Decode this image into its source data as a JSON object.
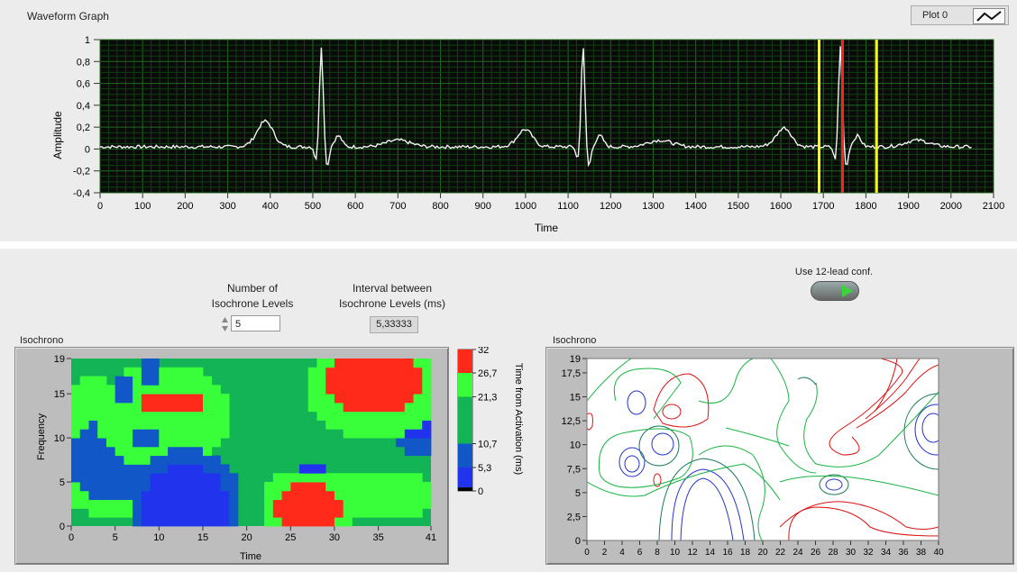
{
  "waveform": {
    "title": "Waveform Graph",
    "plot_legend": "Plot 0",
    "ylabel": "Amplitude",
    "xlabel": "Time",
    "xticks": [
      "0",
      "100",
      "200",
      "300",
      "400",
      "500",
      "600",
      "700",
      "800",
      "900",
      "1000",
      "1100",
      "1200",
      "1300",
      "1400",
      "1500",
      "1600",
      "1700",
      "1800",
      "1900",
      "2000",
      "2100"
    ],
    "yticks": [
      "1",
      "0,8",
      "0,6",
      "0,4",
      "0,2",
      "0",
      "-0,2",
      "-0,4"
    ],
    "cursors": [
      {
        "x": 1690,
        "color": "#ffff00"
      },
      {
        "x": 1745,
        "color": "#ff2020"
      },
      {
        "x": 1825,
        "color": "#ffff00"
      }
    ]
  },
  "controls": {
    "num_levels_label_1": "Number of",
    "num_levels_label_2": "Isochrone Levels",
    "num_levels_value": "5",
    "interval_label_1": "Interval between",
    "interval_label_2": "Isochrone Levels (ms)",
    "interval_value": "5,33333",
    "use12_label": "Use 12-lead conf."
  },
  "isochrone_left": {
    "title": "Isochrono",
    "ylabel": "Frequency",
    "xlabel": "Time",
    "xticks": [
      "0",
      "5",
      "10",
      "15",
      "20",
      "25",
      "30",
      "35",
      "41"
    ],
    "yticks": [
      "19",
      "15",
      "10",
      "5",
      "0"
    ],
    "scale_label": "Time from Activation (ms)",
    "scale_ticks": [
      "32",
      "26,7",
      "21,3",
      "10,7",
      "5,3",
      "0"
    ],
    "scale_colors": [
      "#ff2a1a",
      "#39ff3a",
      "#12b455",
      "#1157c8",
      "#2233ee",
      "#000000"
    ]
  },
  "isochrone_right": {
    "title": "Isochrono",
    "xticks": [
      "0",
      "2",
      "4",
      "6",
      "8",
      "10",
      "12",
      "14",
      "16",
      "18",
      "20",
      "22",
      "24",
      "26",
      "28",
      "30",
      "32",
      "34",
      "36",
      "38",
      "40"
    ],
    "yticks": [
      "19",
      "17,5",
      "15",
      "12,5",
      "10",
      "7,5",
      "5",
      "2,5",
      "0"
    ]
  }
}
